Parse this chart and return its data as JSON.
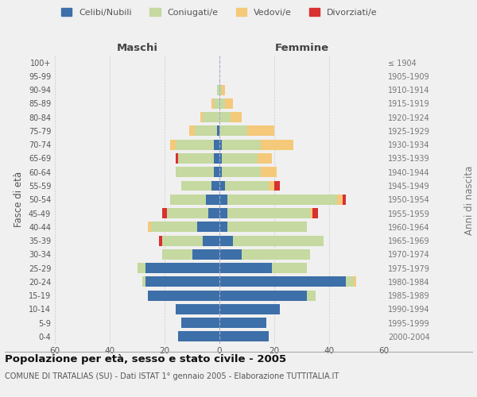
{
  "age_groups": [
    "0-4",
    "5-9",
    "10-14",
    "15-19",
    "20-24",
    "25-29",
    "30-34",
    "35-39",
    "40-44",
    "45-49",
    "50-54",
    "55-59",
    "60-64",
    "65-69",
    "70-74",
    "75-79",
    "80-84",
    "85-89",
    "90-94",
    "95-99",
    "100+"
  ],
  "birth_years": [
    "2000-2004",
    "1995-1999",
    "1990-1994",
    "1985-1989",
    "1980-1984",
    "1975-1979",
    "1970-1974",
    "1965-1969",
    "1960-1964",
    "1955-1959",
    "1950-1954",
    "1945-1949",
    "1940-1944",
    "1935-1939",
    "1930-1934",
    "1925-1929",
    "1920-1924",
    "1915-1919",
    "1910-1914",
    "1905-1909",
    "≤ 1904"
  ],
  "males": {
    "celibi": [
      15,
      14,
      16,
      26,
      27,
      27,
      10,
      6,
      8,
      4,
      5,
      3,
      2,
      2,
      2,
      1,
      0,
      0,
      0,
      0,
      0
    ],
    "coniugati": [
      0,
      0,
      0,
      0,
      1,
      3,
      11,
      15,
      17,
      15,
      13,
      11,
      14,
      13,
      14,
      8,
      6,
      2,
      1,
      0,
      0
    ],
    "vedovi": [
      0,
      0,
      0,
      0,
      0,
      0,
      0,
      0,
      1,
      0,
      0,
      0,
      0,
      0,
      2,
      2,
      1,
      1,
      0,
      0,
      0
    ],
    "divorziati": [
      0,
      0,
      0,
      0,
      0,
      0,
      0,
      1,
      0,
      2,
      0,
      0,
      0,
      1,
      0,
      0,
      0,
      0,
      0,
      0,
      0
    ]
  },
  "females": {
    "nubili": [
      18,
      17,
      22,
      32,
      46,
      19,
      8,
      5,
      3,
      3,
      3,
      2,
      1,
      1,
      1,
      0,
      0,
      0,
      0,
      0,
      0
    ],
    "coniugate": [
      0,
      0,
      0,
      3,
      3,
      13,
      25,
      33,
      29,
      30,
      40,
      16,
      14,
      13,
      14,
      10,
      4,
      2,
      1,
      0,
      0
    ],
    "vedove": [
      0,
      0,
      0,
      0,
      1,
      0,
      0,
      0,
      0,
      1,
      2,
      2,
      6,
      5,
      12,
      10,
      4,
      3,
      1,
      0,
      0
    ],
    "divorziate": [
      0,
      0,
      0,
      0,
      0,
      0,
      0,
      0,
      0,
      2,
      1,
      2,
      0,
      0,
      0,
      0,
      0,
      0,
      0,
      0,
      0
    ]
  },
  "colors": {
    "celibi": "#3d6fa8",
    "coniugati": "#c5d9a0",
    "vedovi": "#f5c97a",
    "divorziati": "#d93030"
  },
  "xlim": 60,
  "title": "Popolazione per età, sesso e stato civile - 2005",
  "subtitle": "COMUNE DI TRATALIAS (SU) - Dati ISTAT 1° gennaio 2005 - Elaborazione TUTTITALIA.IT",
  "ylabel_left": "Fasce di età",
  "ylabel_right": "Anni di nascita",
  "legend_labels": [
    "Celibi/Nubili",
    "Coniugati/e",
    "Vedovi/e",
    "Divorziati/e"
  ],
  "bg_color": "#f0f0f0",
  "bar_height": 0.75
}
